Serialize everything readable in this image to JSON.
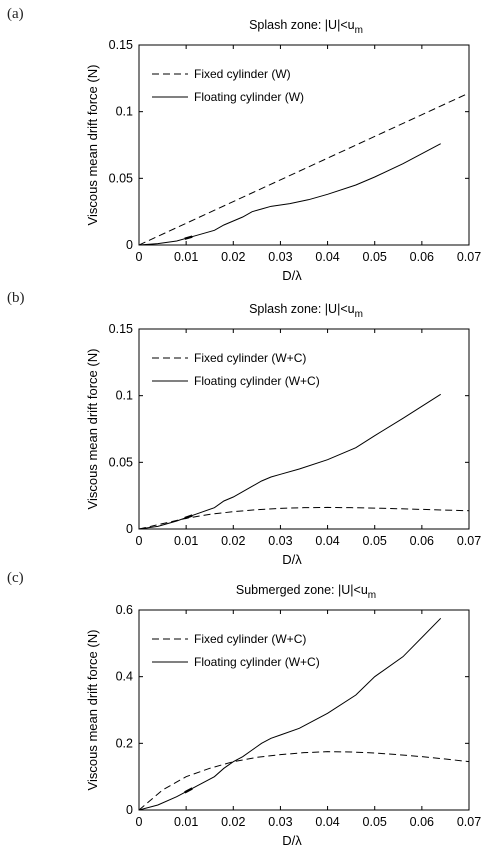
{
  "chart_data": [
    {
      "type": "line",
      "panel_label": "(a)",
      "title": "Splash zone: |U|<u",
      "title_sub": "m",
      "xlabel": "D/λ",
      "ylabel": "Viscous mean drift force (N)",
      "xlim": [
        0,
        0.07
      ],
      "ylim": [
        0,
        0.15
      ],
      "xticks": [
        "0",
        "0.01",
        "0.02",
        "0.03",
        "0.04",
        "0.05",
        "0.06",
        "0.07"
      ],
      "yticks": [
        "0",
        "0.05",
        "0.1",
        "0.15"
      ],
      "legend_position": "top-left",
      "grid": false,
      "series": [
        {
          "name": "Fixed cylinder (W)",
          "style": "dashed",
          "x": [
            0,
            0.07
          ],
          "y": [
            0,
            0.114
          ]
        },
        {
          "name": "Floating cylinder (W)",
          "style": "solid",
          "x": [
            0,
            0.004,
            0.008,
            0.012,
            0.016,
            0.018,
            0.02,
            0.022,
            0.024,
            0.026,
            0.028,
            0.03,
            0.032,
            0.036,
            0.04,
            0.046,
            0.05,
            0.056,
            0.064
          ],
          "y": [
            0,
            0.001,
            0.003,
            0.007,
            0.011,
            0.015,
            0.018,
            0.021,
            0.025,
            0.027,
            0.029,
            0.03,
            0.031,
            0.034,
            0.038,
            0.045,
            0.051,
            0.061,
            0.076
          ]
        }
      ]
    },
    {
      "type": "line",
      "panel_label": "(b)",
      "title": "Splash zone: |U|<u",
      "title_sub": "m",
      "xlabel": "D/λ",
      "ylabel": "Viscous mean drift force (N)",
      "xlim": [
        0,
        0.07
      ],
      "ylim": [
        0,
        0.15
      ],
      "xticks": [
        "0",
        "0.01",
        "0.02",
        "0.03",
        "0.04",
        "0.05",
        "0.06",
        "0.07"
      ],
      "yticks": [
        "0",
        "0.05",
        "0.1",
        "0.15"
      ],
      "legend_position": "top-left",
      "grid": false,
      "series": [
        {
          "name": "Fixed cylinder (W+C)",
          "style": "dashed",
          "x": [
            0,
            0.005,
            0.01,
            0.015,
            0.02,
            0.025,
            0.03,
            0.035,
            0.04,
            0.045,
            0.05,
            0.055,
            0.06,
            0.065,
            0.07
          ],
          "y": [
            0,
            0.004,
            0.008,
            0.011,
            0.013,
            0.0145,
            0.0155,
            0.016,
            0.0162,
            0.016,
            0.0157,
            0.0152,
            0.0147,
            0.0142,
            0.0137
          ]
        },
        {
          "name": "Floating cylinder (W+C)",
          "style": "solid",
          "x": [
            0,
            0.004,
            0.008,
            0.012,
            0.016,
            0.018,
            0.02,
            0.022,
            0.024,
            0.026,
            0.028,
            0.03,
            0.034,
            0.04,
            0.046,
            0.05,
            0.056,
            0.064
          ],
          "y": [
            0,
            0.002,
            0.006,
            0.011,
            0.016,
            0.021,
            0.024,
            0.028,
            0.032,
            0.036,
            0.039,
            0.041,
            0.045,
            0.052,
            0.061,
            0.07,
            0.083,
            0.101
          ]
        }
      ]
    },
    {
      "type": "line",
      "panel_label": "(c)",
      "title": "Submerged zone: |U|<u",
      "title_sub": "m",
      "xlabel": "D/λ",
      "ylabel": "Viscous mean drift force (N)",
      "xlim": [
        0,
        0.07
      ],
      "ylim": [
        0,
        0.6
      ],
      "xticks": [
        "0",
        "0.01",
        "0.02",
        "0.03",
        "0.04",
        "0.05",
        "0.06",
        "0.07"
      ],
      "yticks": [
        "0",
        "0.2",
        "0.4",
        "0.6"
      ],
      "legend_position": "top-left",
      "grid": false,
      "series": [
        {
          "name": "Fixed cylinder (W+C)",
          "style": "dashed",
          "x": [
            0,
            0.005,
            0.01,
            0.015,
            0.02,
            0.025,
            0.03,
            0.035,
            0.04,
            0.045,
            0.05,
            0.055,
            0.06,
            0.065,
            0.07
          ],
          "y": [
            0,
            0.06,
            0.1,
            0.125,
            0.145,
            0.158,
            0.166,
            0.172,
            0.175,
            0.174,
            0.171,
            0.166,
            0.16,
            0.153,
            0.145
          ]
        },
        {
          "name": "Floating cylinder (W+C)",
          "style": "solid",
          "x": [
            0,
            0.004,
            0.008,
            0.012,
            0.016,
            0.018,
            0.02,
            0.022,
            0.024,
            0.026,
            0.028,
            0.03,
            0.034,
            0.04,
            0.046,
            0.05,
            0.056,
            0.064
          ],
          "y": [
            0,
            0.015,
            0.04,
            0.07,
            0.1,
            0.125,
            0.145,
            0.16,
            0.18,
            0.2,
            0.215,
            0.225,
            0.245,
            0.29,
            0.345,
            0.4,
            0.46,
            0.575
          ]
        }
      ]
    }
  ]
}
